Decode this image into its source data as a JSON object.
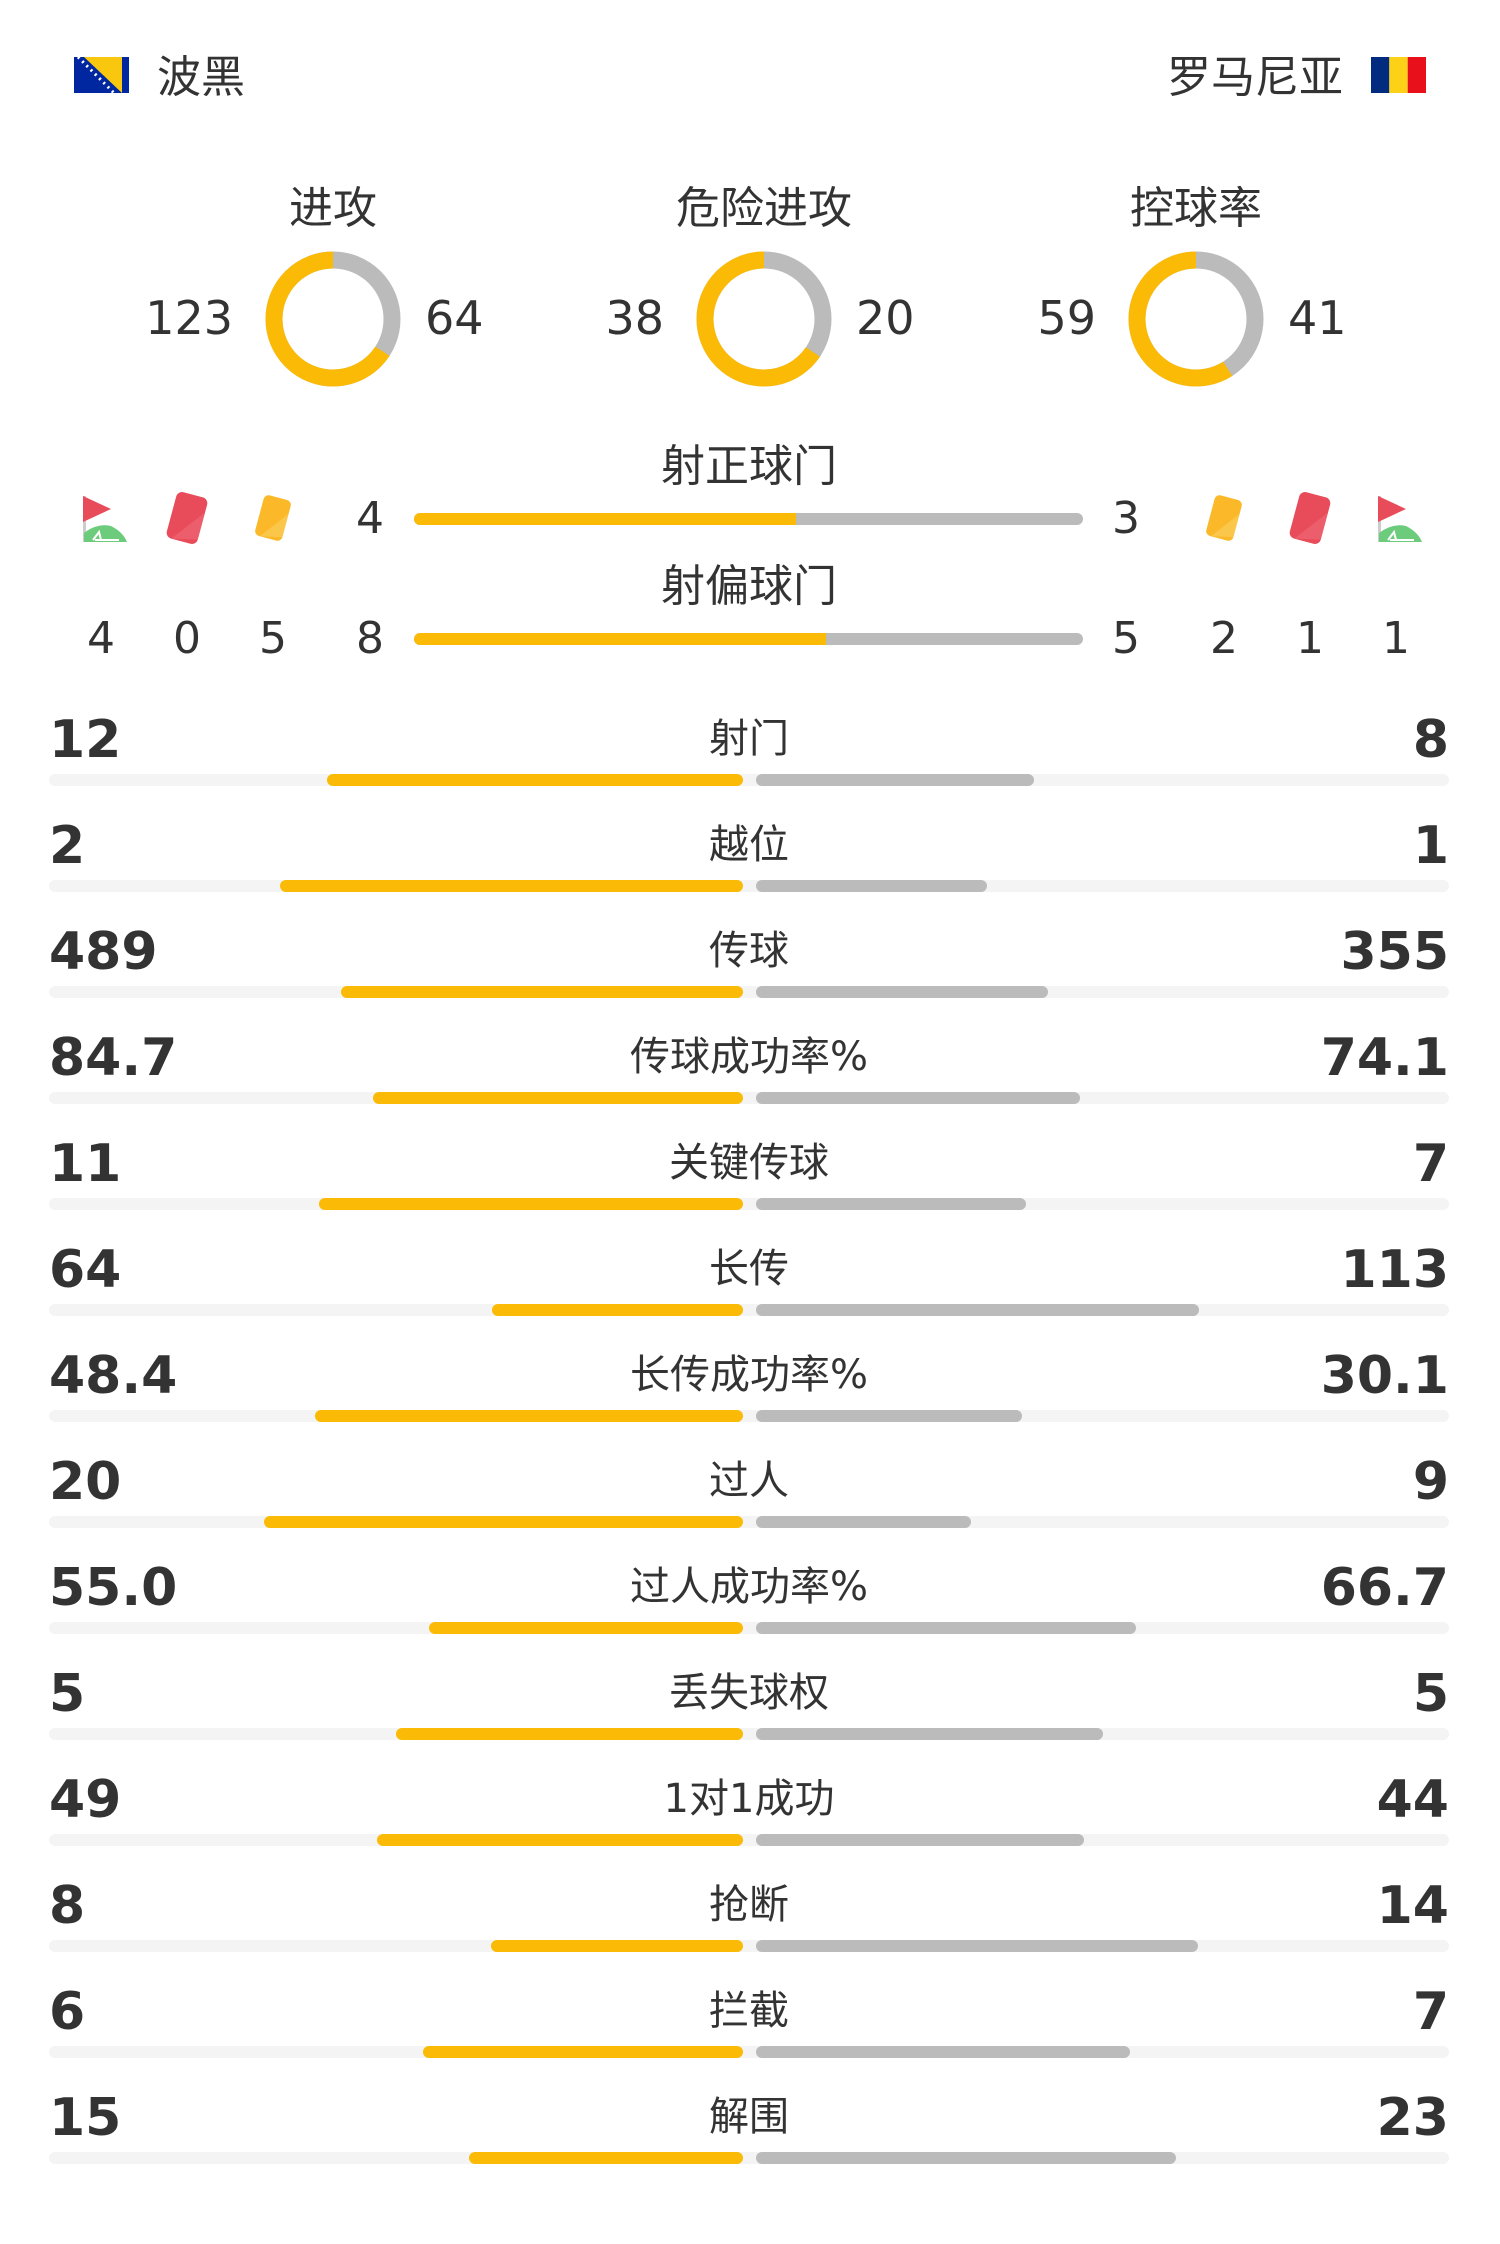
{
  "teams": {
    "home": {
      "name": "波黑",
      "flag": "bosnia-flag"
    },
    "away": {
      "name": "罗马尼亚",
      "flag": "romania-flag"
    }
  },
  "colors": {
    "home": "#FBBA05",
    "away": "#BBBBBB",
    "track": "#F4F4F4",
    "text": "#333333"
  },
  "donuts": [
    {
      "label": "进攻",
      "home": "123",
      "away": "64"
    },
    {
      "label": "危险进攻",
      "home": "38",
      "away": "20"
    },
    {
      "label": "控球率",
      "home": "59",
      "away": "41"
    }
  ],
  "shots_on_target": {
    "label": "射正球门",
    "home": "4",
    "away": "3"
  },
  "shots_off_target": {
    "label": "射偏球门",
    "home": "8",
    "away": "5"
  },
  "events": {
    "home": {
      "corners": "4",
      "red_cards": "0",
      "yellow_cards": "5"
    },
    "away": {
      "yellow_cards": "2",
      "red_cards": "1",
      "corners": "1"
    }
  },
  "stats": [
    {
      "label": "射门",
      "home": "12",
      "away": "8"
    },
    {
      "label": "越位",
      "home": "2",
      "away": "1"
    },
    {
      "label": "传球",
      "home": "489",
      "away": "355"
    },
    {
      "label": "传球成功率%",
      "home": "84.7",
      "away": "74.1"
    },
    {
      "label": "关键传球",
      "home": "11",
      "away": "7"
    },
    {
      "label": "长传",
      "home": "64",
      "away": "113"
    },
    {
      "label": "长传成功率%",
      "home": "48.4",
      "away": "30.1"
    },
    {
      "label": "过人",
      "home": "20",
      "away": "9"
    },
    {
      "label": "过人成功率%",
      "home": "55.0",
      "away": "66.7"
    },
    {
      "label": "丢失球权",
      "home": "5",
      "away": "5"
    },
    {
      "label": "1对1成功",
      "home": "49",
      "away": "44"
    },
    {
      "label": "抢断",
      "home": "8",
      "away": "14"
    },
    {
      "label": "拦截",
      "home": "6",
      "away": "7"
    },
    {
      "label": "解围",
      "home": "15",
      "away": "23"
    }
  ]
}
